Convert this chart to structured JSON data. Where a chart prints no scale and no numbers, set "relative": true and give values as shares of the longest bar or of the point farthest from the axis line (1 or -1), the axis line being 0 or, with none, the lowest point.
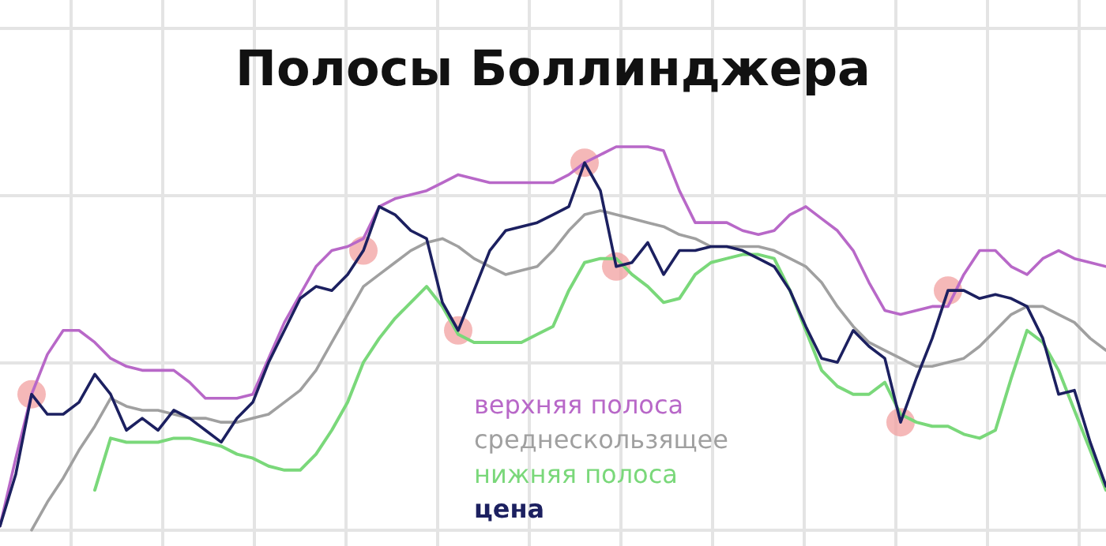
{
  "chart_data": {
    "type": "line",
    "title": "Полосы Боллинджера",
    "relative": true,
    "grid": true,
    "categories": [
      null,
      null,
      null,
      null,
      null,
      null,
      null,
      null,
      null,
      null,
      null,
      null,
      null,
      null,
      null,
      null,
      null,
      null,
      null,
      null,
      null,
      null,
      null,
      null,
      null,
      null,
      null,
      null,
      null,
      null,
      null,
      null,
      null,
      null,
      null,
      null,
      null,
      null,
      null,
      null,
      null,
      null,
      null,
      null,
      null,
      null,
      null,
      null,
      null,
      null,
      null,
      null,
      null,
      null,
      null,
      null,
      null,
      null,
      null,
      null,
      null,
      null,
      null,
      null,
      null,
      null,
      null,
      null,
      null,
      null,
      null
    ],
    "series": [
      {
        "name": "верхняя полоса",
        "color": "#b868c8",
        "values": [
          0.05,
          0.22,
          0.38,
          0.48,
          0.54,
          0.54,
          0.51,
          0.47,
          0.45,
          0.44,
          0.44,
          0.44,
          0.41,
          0.37,
          0.37,
          0.37,
          0.38,
          0.47,
          0.56,
          0.63,
          0.7,
          0.74,
          0.75,
          0.77,
          0.85,
          0.87,
          0.88,
          0.89,
          0.91,
          0.93,
          0.92,
          0.91,
          0.91,
          0.91,
          0.91,
          0.91,
          0.93,
          0.96,
          0.98,
          1,
          1,
          1,
          0.99,
          0.89,
          0.81,
          0.81,
          0.81,
          0.79,
          0.78,
          0.79,
          0.83,
          0.85,
          0.82,
          0.79,
          0.74,
          0.66,
          0.59,
          0.58,
          0.59,
          0.6,
          0.6,
          0.68,
          0.74,
          0.74,
          0.7,
          0.68,
          0.72,
          0.74,
          0.72,
          0.71,
          0.7
        ]
      },
      {
        "name": "среднескользящее",
        "color": "#a0a0a0",
        "values": [
          null,
          null,
          0.04,
          0.11,
          0.17,
          0.24,
          0.3,
          0.37,
          0.35,
          0.34,
          0.34,
          0.33,
          0.32,
          0.32,
          0.31,
          0.31,
          0.32,
          0.33,
          0.36,
          0.39,
          0.44,
          0.51,
          0.58,
          0.65,
          0.68,
          0.71,
          0.74,
          0.76,
          0.77,
          0.75,
          0.72,
          0.7,
          0.68,
          0.69,
          0.7,
          0.74,
          0.79,
          0.83,
          0.84,
          0.83,
          0.82,
          0.81,
          0.8,
          0.78,
          0.77,
          0.75,
          0.75,
          0.75,
          0.75,
          0.74,
          0.72,
          0.7,
          0.66,
          0.6,
          0.55,
          0.51,
          0.49,
          0.47,
          0.45,
          0.45,
          0.46,
          0.47,
          0.5,
          0.54,
          0.58,
          0.6,
          0.6,
          0.58,
          0.56,
          0.52,
          0.49
        ]
      },
      {
        "name": "нижняя полоса",
        "color": "#7ad87a",
        "values": [
          null,
          null,
          null,
          null,
          null,
          null,
          0.14,
          0.27,
          0.26,
          0.26,
          0.26,
          0.27,
          0.27,
          0.26,
          0.25,
          0.23,
          0.22,
          0.2,
          0.19,
          0.19,
          0.23,
          0.29,
          0.36,
          0.46,
          0.52,
          0.57,
          0.61,
          0.65,
          0.6,
          0.53,
          0.51,
          0.51,
          0.51,
          0.51,
          0.53,
          0.55,
          0.64,
          0.71,
          0.72,
          0.72,
          0.68,
          0.65,
          0.61,
          0.62,
          0.68,
          0.71,
          0.72,
          0.73,
          0.73,
          0.72,
          0.64,
          0.54,
          0.44,
          0.4,
          0.38,
          0.38,
          0.41,
          0.33,
          0.31,
          0.3,
          0.3,
          0.28,
          0.27,
          0.29,
          0.42,
          0.54,
          0.51,
          0.44,
          0.34,
          0.24,
          0.14
        ]
      },
      {
        "name": "цена",
        "color": "#1c2060",
        "values": [
          0.05,
          0.18,
          0.38,
          0.33,
          0.33,
          0.36,
          0.43,
          0.38,
          0.29,
          0.32,
          0.29,
          0.34,
          0.32,
          0.29,
          0.26,
          0.32,
          0.36,
          0.46,
          0.54,
          0.62,
          0.65,
          0.64,
          0.68,
          0.74,
          0.85,
          0.83,
          0.79,
          0.77,
          0.61,
          0.54,
          0.64,
          0.74,
          0.79,
          0.8,
          0.81,
          0.83,
          0.85,
          0.96,
          0.89,
          0.7,
          0.71,
          0.76,
          0.68,
          0.74,
          0.74,
          0.75,
          0.75,
          0.74,
          0.72,
          0.7,
          0.64,
          0.55,
          0.47,
          0.46,
          0.54,
          0.5,
          0.47,
          0.31,
          0.42,
          0.52,
          0.64,
          0.64,
          0.62,
          0.63,
          0.62,
          0.6,
          0.52,
          0.38,
          0.39,
          0.26,
          0.15
        ]
      }
    ]
  }
}
